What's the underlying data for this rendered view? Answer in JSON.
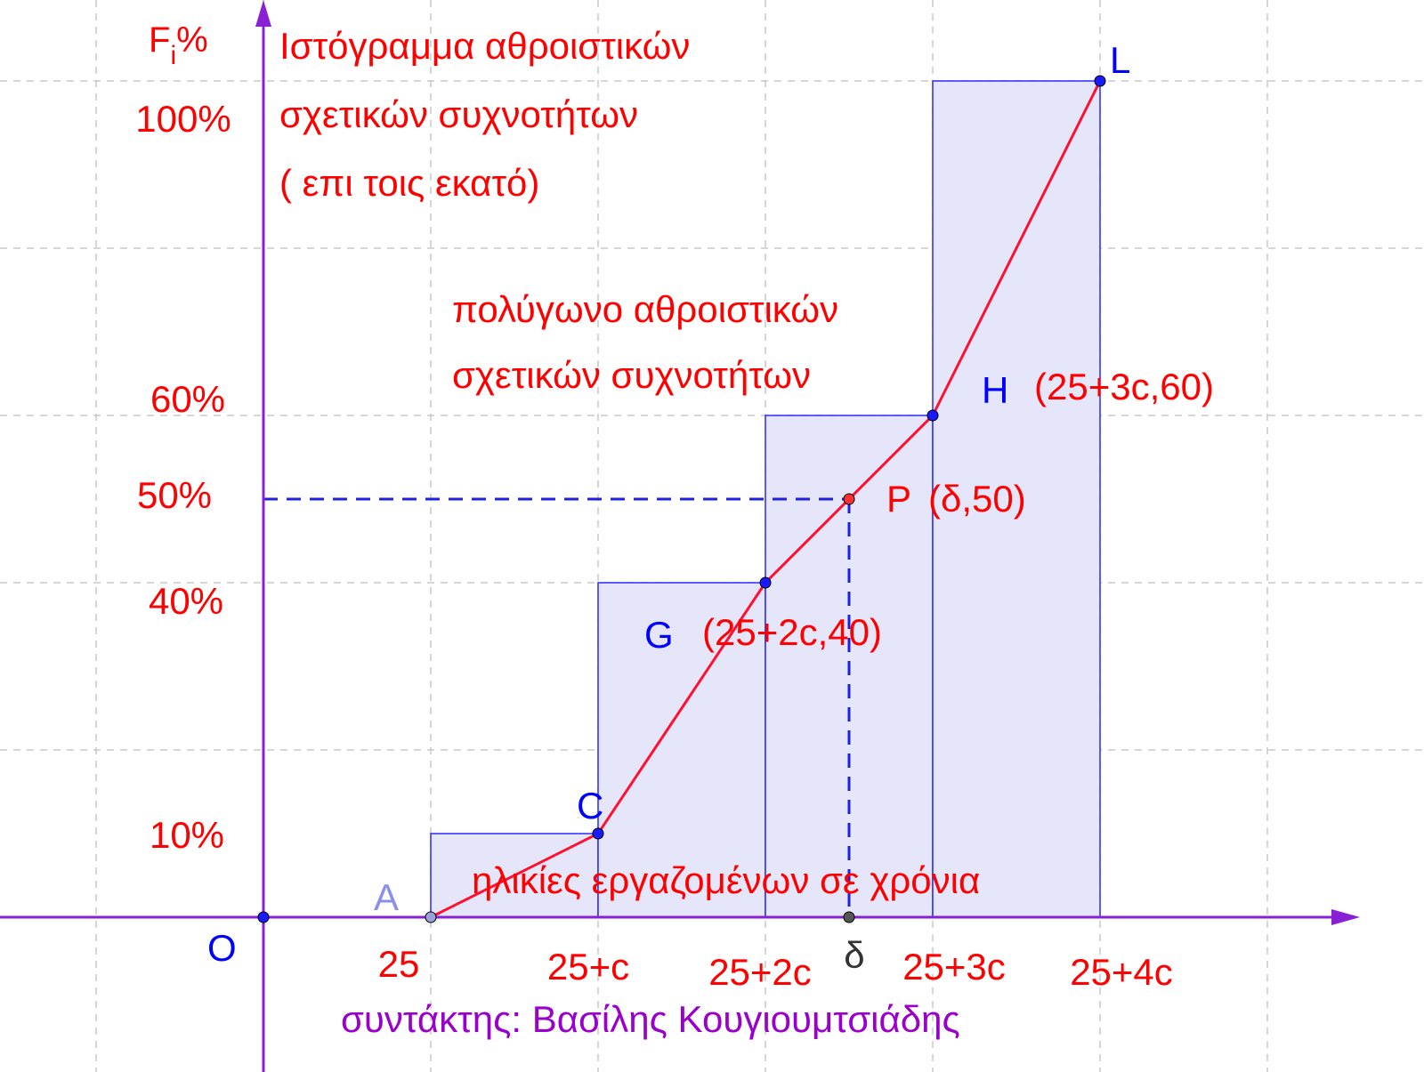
{
  "chart_data": {
    "type": "area",
    "x_axis_ticks": [
      "25",
      "25+c",
      "25+2c",
      "25+3c",
      "25+4c"
    ],
    "x_title": "ηλικίες εργαζομένων σε χρόνια",
    "y_title_main": "F",
    "y_title_sub": "i",
    "y_title_suffix": "%",
    "y_ticks": [
      {
        "value": 10,
        "label": "10%"
      },
      {
        "value": 40,
        "label": "40%"
      },
      {
        "value": 50,
        "label": "50%"
      },
      {
        "value": 60,
        "label": "60%"
      },
      {
        "value": 100,
        "label": "100%"
      }
    ],
    "title_lines": [
      "Ιστόγραμμα αθροιστικών",
      "σχετικών συχνοτήτων",
      "( επι τοις εκατό)"
    ],
    "polygon_label_lines": [
      "πολύγωνο αθροιστικών",
      "σχετικών συχνοτήτων"
    ],
    "histogram": [
      {
        "class_index": 1,
        "cumulative_percent": 10
      },
      {
        "class_index": 2,
        "cumulative_percent": 40
      },
      {
        "class_index": 3,
        "cumulative_percent": 60
      },
      {
        "class_index": 4,
        "cumulative_percent": 100
      }
    ],
    "ogive_points": [
      {
        "name": "A",
        "x_index": 0,
        "y": 0,
        "coord_label": ""
      },
      {
        "name": "C",
        "x_index": 1,
        "y": 10,
        "coord_label": ""
      },
      {
        "name": "G",
        "x_index": 2,
        "y": 40,
        "coord_label": "(25+2c,40)"
      },
      {
        "name": "H",
        "x_index": 3,
        "y": 60,
        "coord_label": "(25+3c,60)"
      },
      {
        "name": "L",
        "x_index": 4,
        "y": 100,
        "coord_label": ""
      }
    ],
    "median_point": {
      "name": "P",
      "coord_label": "(δ,50)",
      "y": 50,
      "x_index": 2.5,
      "x_label": "δ"
    },
    "origin_label": "O",
    "grid": true,
    "author_line": "συντάκτης: Βασίλης Κουγιουμτσιάδης",
    "colors": {
      "axis": "#8a20d6",
      "text_red": "#ff0000",
      "point_blue": "#0000ff",
      "bar_fill": "#e6e6fa",
      "bar_stroke": "#2a2aff",
      "polygon": "#ff1030",
      "dashed": "#2020e0",
      "grid": "#c8c8c8",
      "author": "#9900cc"
    }
  }
}
